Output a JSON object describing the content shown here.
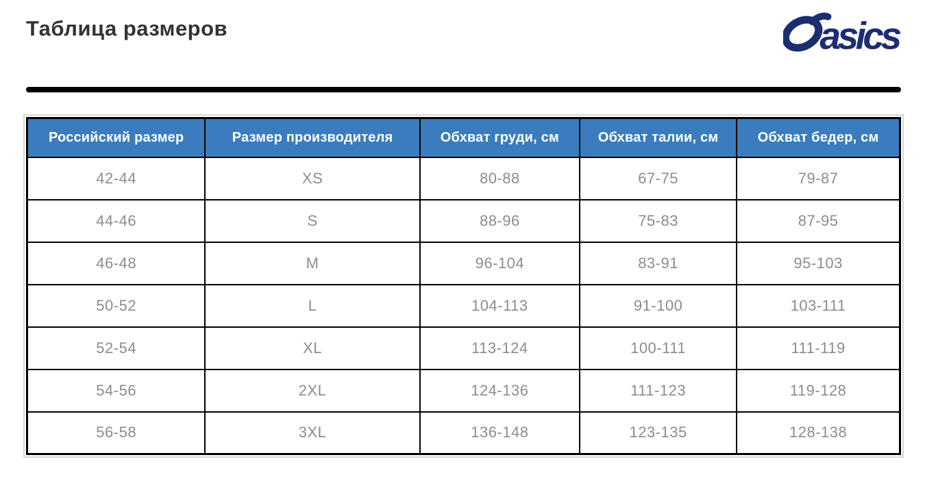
{
  "page": {
    "title": "Таблица размеров"
  },
  "logo": {
    "brand": "asics",
    "color": "#1c2e70"
  },
  "colors": {
    "title_text": "#333333",
    "header_bg": "#3a7cbe",
    "header_text": "#ffffff",
    "cell_text": "#8c8c8c",
    "border": "#000000",
    "outer_outline": "#d6d6d6"
  },
  "table": {
    "columns": [
      "Российский размер",
      "Размер производителя",
      "Обхват груди, см",
      "Обхват талии, см",
      "Обхват бедер, см"
    ],
    "rows": [
      [
        "42-44",
        "XS",
        "80-88",
        "67-75",
        "79-87"
      ],
      [
        "44-46",
        "S",
        "88-96",
        "75-83",
        "87-95"
      ],
      [
        "46-48",
        "M",
        "96-104",
        "83-91",
        "95-103"
      ],
      [
        "50-52",
        "L",
        "104-113",
        "91-100",
        "103-111"
      ],
      [
        "52-54",
        "XL",
        "113-124",
        "100-111",
        "111-119"
      ],
      [
        "54-56",
        "2XL",
        "124-136",
        "111-123",
        "119-128"
      ],
      [
        "56-58",
        "3XL",
        "136-148",
        "123-135",
        "128-138"
      ]
    ]
  }
}
